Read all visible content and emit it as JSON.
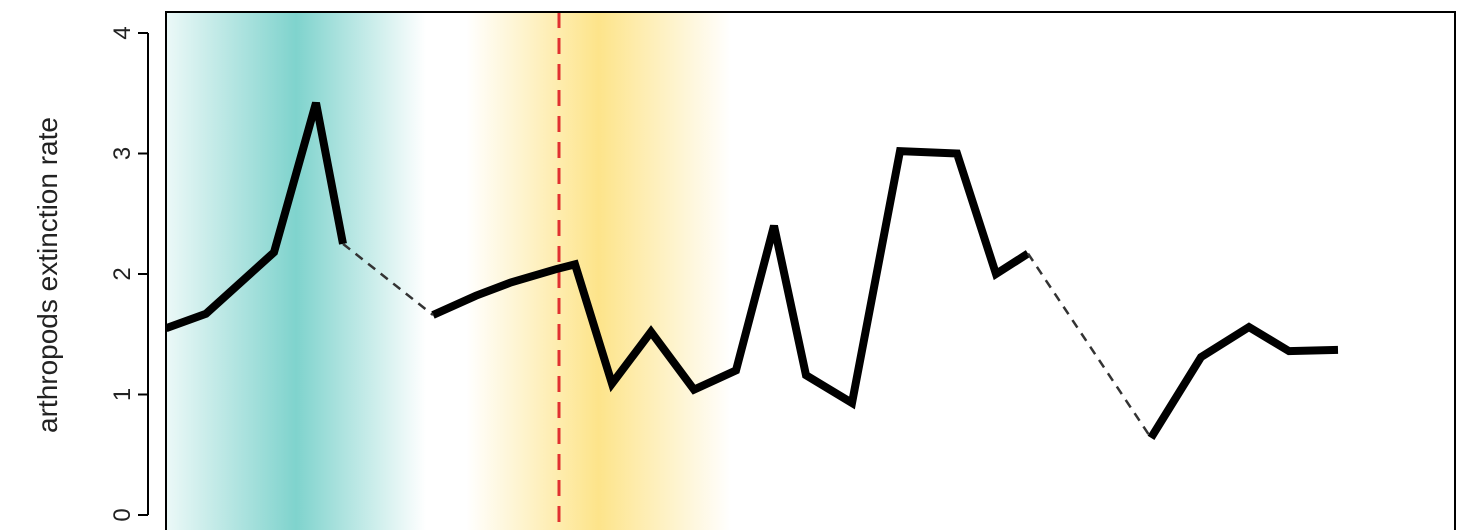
{
  "chart_data": {
    "type": "line",
    "title": "",
    "xlabel": "",
    "ylabel": "arthropods extinction rate",
    "ylim": [
      0,
      4
    ],
    "yticks": [
      0,
      1,
      2,
      3,
      4
    ],
    "grid": false,
    "colors": {
      "line": "#000000",
      "connector": "#333333",
      "marker_line": "#e03030",
      "band_teal": "#7fd3cd",
      "band_yellow": "#fde48a"
    },
    "series": [
      {
        "style": "solid",
        "segments": [
          [
            [
              0,
              1.55
            ],
            [
              40,
              1.67
            ],
            [
              108,
              2.18
            ],
            [
              150,
              3.42
            ],
            [
              177,
              2.25
            ]
          ],
          [
            [
              267,
              1.66
            ],
            [
              310,
              1.82
            ],
            [
              345,
              1.93
            ],
            [
              390,
              2.04
            ],
            [
              409,
              2.08
            ],
            [
              446,
              1.09
            ],
            [
              485,
              1.52
            ],
            [
              528,
              1.04
            ],
            [
              570,
              1.2
            ],
            [
              608,
              2.4
            ],
            [
              640,
              1.16
            ],
            [
              686,
              0.93
            ],
            [
              734,
              3.02
            ],
            [
              791,
              3.0
            ],
            [
              830,
              2.0
            ],
            [
              862,
              2.17
            ]
          ],
          [
            [
              985,
              0.64
            ],
            [
              1035,
              1.31
            ],
            [
              1083,
              1.56
            ],
            [
              1123,
              1.36
            ],
            [
              1172,
              1.37
            ]
          ]
        ]
      },
      {
        "style": "dashed",
        "segments": [
          [
            [
              177,
              2.25
            ],
            [
              267,
              1.66
            ]
          ],
          [
            [
              862,
              2.17
            ],
            [
              985,
              0.64
            ]
          ]
        ]
      }
    ],
    "vertical_marker": {
      "x": 393,
      "style": "dashed"
    },
    "bands": [
      {
        "color": "teal",
        "from": 0,
        "to": 260,
        "peak": 130
      },
      {
        "color": "yellow",
        "from": 300,
        "to": 565,
        "peak": 440
      }
    ]
  }
}
